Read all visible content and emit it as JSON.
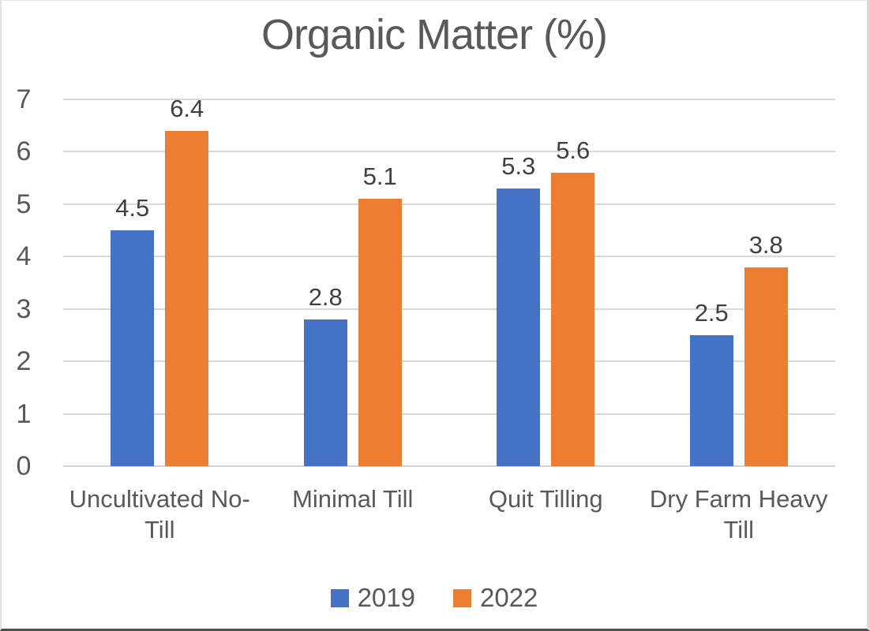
{
  "chart_data": {
    "type": "bar",
    "title": "Organic Matter (%)",
    "categories": [
      "Uncultivated No-Till",
      "Minimal Till",
      "Quit Tilling",
      "Dry Farm Heavy Till"
    ],
    "series": [
      {
        "name": "2019",
        "color": "#4472C4",
        "values": [
          4.5,
          2.8,
          5.3,
          2.5
        ]
      },
      {
        "name": "2022",
        "color": "#ED7D31",
        "values": [
          6.4,
          5.1,
          5.6,
          3.8
        ]
      }
    ],
    "xlabel": "",
    "ylabel": "",
    "ylim": [
      0,
      7
    ],
    "yticks": [
      0,
      1,
      2,
      3,
      4,
      5,
      6,
      7
    ],
    "grid": "horizontal",
    "legend_position": "bottom",
    "data_labels": true
  },
  "colors": {
    "title_text": "#595959",
    "axis_text": "#595959",
    "data_label_text": "#404040",
    "category_text": "#595959",
    "gridline": "#D9D9D9",
    "axis_line": "#D2D2D2",
    "series_2019": "#4472C4",
    "series_2022": "#ED7D31",
    "frame_bottom_border": "#4D4D4D"
  }
}
